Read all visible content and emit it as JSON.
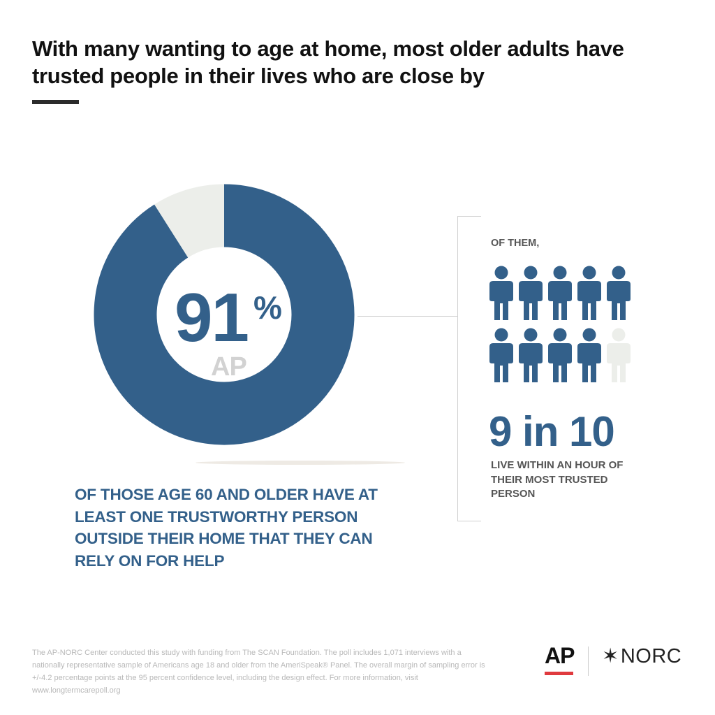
{
  "header": {
    "title": "With many wanting to age at home, most older adults have trusted people in their lives who are close by"
  },
  "chart_data": [
    {
      "type": "pie",
      "slices": [
        {
          "label": "",
          "value": 91,
          "color": "#33608a"
        },
        {
          "label": "",
          "value": 9,
          "color": "#eceeea"
        }
      ],
      "center_value": "91",
      "center_unit": "%",
      "caption": "OF THOSE AGE 60 AND OLDER HAVE AT LEAST ONE TRUSTWORTHY PERSON OUTSIDE THEIR HOME THAT THEY CAN RELY ON FOR HELP"
    },
    {
      "type": "table",
      "kind": "pictogram",
      "total": 10,
      "filled": 9,
      "filled_color": "#33608a",
      "empty_color": "#eceeea",
      "lead_in": "OF THEM,",
      "stat": "9 in 10",
      "caption": "LIVE WITHIN AN HOUR OF THEIR MOST TRUSTED PERSON"
    }
  ],
  "watermark": "AP",
  "footnote": "The AP-NORC Center conducted this study with funding from The SCAN Foundation. The poll includes 1,071 interviews with a nationally representative sample of Americans age 18 and older from the AmeriSpeak® Panel. The overall margin of sampling error is +/-4.2 percentage points at the 95 percent confidence level, including the design effect. For more information, visit www.longtermcarepoll.org",
  "logos": {
    "ap": "AP",
    "norc": "NORC",
    "norc_star_icon": "✶",
    "ap_bar_color": "#e03a3e"
  }
}
